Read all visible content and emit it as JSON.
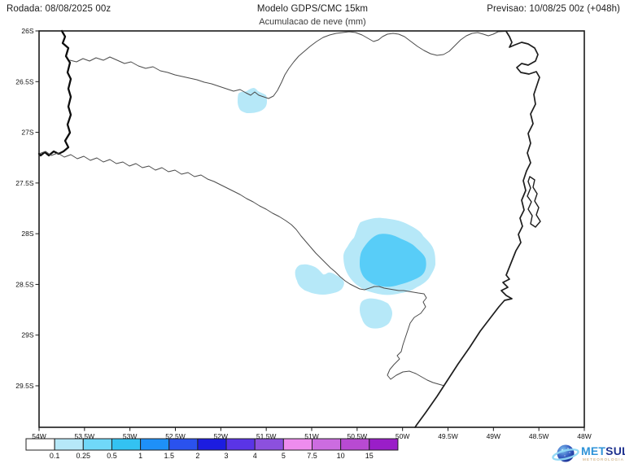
{
  "header": {
    "run_label": "Rodada: 08/08/2025 00z",
    "model_title": "Modelo GDPS/CMC 15km",
    "subtitle": "Acumulacao de neve (mm)",
    "forecast_label": "Previsao: 10/08/25 00z (+048h)"
  },
  "map": {
    "y_axis_labels": [
      "26S",
      "26.5S",
      "27S",
      "27.5S",
      "28S",
      "28.5S",
      "29S",
      "29.5S"
    ],
    "x_axis_labels": [
      "54W",
      "53.5W",
      "53W",
      "52.5W",
      "52W",
      "51.5W",
      "51W",
      "50.5W",
      "50W",
      "49.5W",
      "49W",
      "48.5W",
      "48W"
    ],
    "snow_areas": [
      {
        "location": "51.6W 26.8S",
        "accumulation_mm": "0.1-0.25"
      },
      {
        "location": "50.2W 28.2S",
        "accumulation_mm": "0.25-0.5 core, 0.1-0.25 fringe"
      },
      {
        "location": "50.9W 28.5S",
        "accumulation_mm": "0.1-0.25"
      },
      {
        "location": "50.3W 28.8S",
        "accumulation_mm": "0.1-0.25"
      }
    ]
  },
  "legend": {
    "tick_labels": [
      "0.1",
      "0.25",
      "0.5",
      "1",
      "1.5",
      "2",
      "3",
      "4",
      "5",
      "7.5",
      "10",
      "15"
    ],
    "cell_colors": [
      "#ffffff",
      "#b6e8f8",
      "#70d8f8",
      "#33c2f2",
      "#1e90f8",
      "#2a52ee",
      "#1c1ce0",
      "#5a34e6",
      "#8c50de",
      "#ee8cee",
      "#cc6ce0",
      "#b84ad2",
      "#9a1ec8"
    ],
    "snow_light_color": "#b6e8f8",
    "snow_core_color": "#58cdf8"
  },
  "logo": {
    "word_met": "MET",
    "word_sul": "SUL",
    "tagline": "METEOROLOGIA"
  }
}
